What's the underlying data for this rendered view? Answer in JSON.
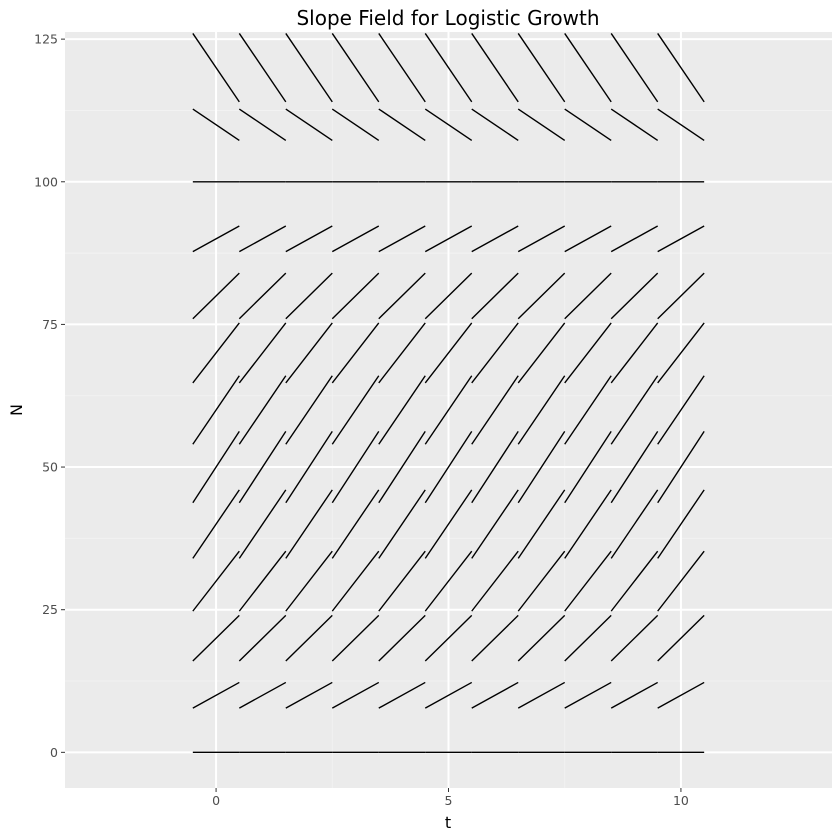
{
  "chart_data": {
    "type": "slope-field",
    "title": "Slope Field for Logistic Growth",
    "xlabel": "t",
    "ylabel": "N",
    "xlim": [
      -3.25,
      13.25
    ],
    "ylim": [
      -6.25,
      126.25
    ],
    "x_ticks": [
      0,
      5,
      10
    ],
    "y_ticks": [
      0,
      25,
      50,
      75,
      100,
      125
    ],
    "grid": true,
    "grid_t": [
      0,
      1,
      2,
      3,
      4,
      5,
      6,
      7,
      8,
      9,
      10
    ],
    "grid_N": [
      0,
      10,
      20,
      30,
      40,
      50,
      60,
      70,
      80,
      90,
      100,
      110,
      120
    ],
    "model": {
      "r": 0.5,
      "K": 100
    },
    "segment_half_length_t": 0.5,
    "colors": {
      "panel": "#EBEBEB",
      "grid_major": "#FFFFFF",
      "grid_minor": "#F2F2F2",
      "segment": "#000000",
      "tick_text": "#4D4D4D"
    }
  }
}
